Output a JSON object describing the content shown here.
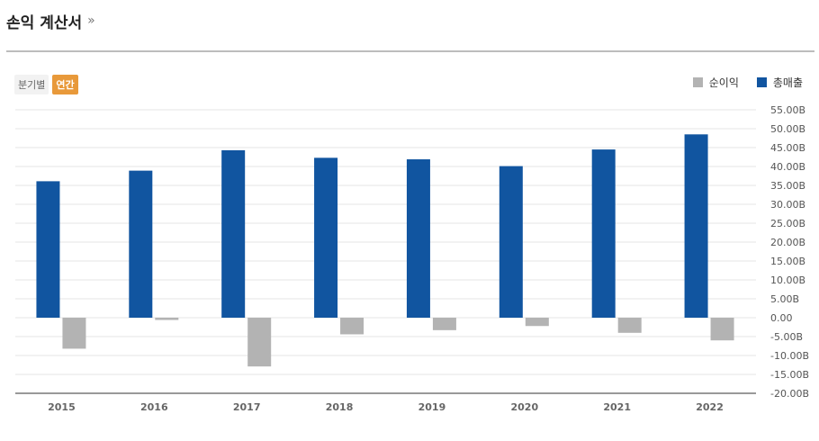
{
  "header": {
    "title": "손익 계산서",
    "more": "»"
  },
  "tabs": [
    {
      "label": "분기별",
      "active": false
    },
    {
      "label": "연간",
      "active": true
    }
  ],
  "legend": [
    {
      "label": "순이익",
      "color": "#b3b3b3"
    },
    {
      "label": "총매출",
      "color": "#1155a0"
    }
  ],
  "chart_data": {
    "type": "bar",
    "categories": [
      "2015",
      "2016",
      "2017",
      "2018",
      "2019",
      "2020",
      "2021",
      "2022"
    ],
    "series": [
      {
        "name": "총매출",
        "color": "#1155a0",
        "values": [
          36.1,
          38.9,
          44.3,
          42.3,
          41.9,
          40.1,
          44.5,
          48.5
        ]
      },
      {
        "name": "순이익",
        "color": "#b3b3b3",
        "values": [
          -8.2,
          -0.6,
          -12.9,
          -4.4,
          -3.3,
          -2.2,
          -4.0,
          -6.0
        ]
      }
    ],
    "ylim": [
      -20,
      55
    ],
    "yticks": [
      "55.00B",
      "50.00B",
      "45.00B",
      "40.00B",
      "35.00B",
      "30.00B",
      "25.00B",
      "20.00B",
      "15.00B",
      "10.00B",
      "5.00B",
      "0.00",
      "-5.00B",
      "-10.00B",
      "-15.00B",
      "-20.00B"
    ],
    "ytick_values": [
      55,
      50,
      45,
      40,
      35,
      30,
      25,
      20,
      15,
      10,
      5,
      0,
      -5,
      -10,
      -15,
      -20
    ],
    "grid": true,
    "legend_position": "top-right"
  }
}
